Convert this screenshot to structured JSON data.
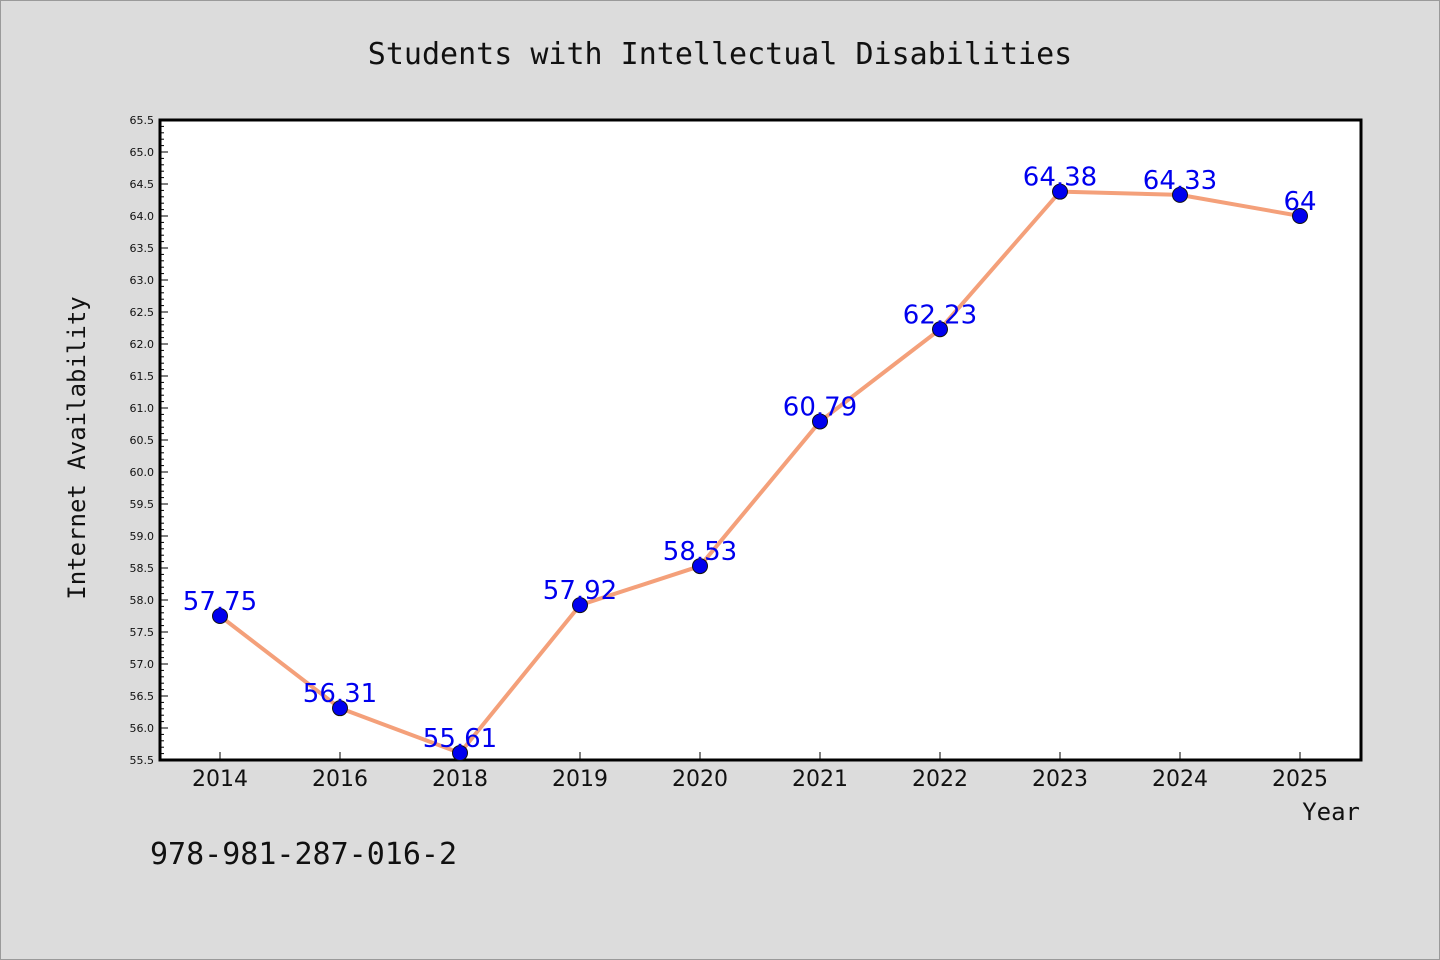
{
  "chart_data": {
    "type": "line",
    "title": "Students with Intellectual Disabilities",
    "xlabel": "Year",
    "ylabel": "Internet Availability",
    "categories": [
      "2014",
      "2016",
      "2018",
      "2019",
      "2020",
      "2021",
      "2022",
      "2023",
      "2024",
      "2025"
    ],
    "series": [
      {
        "values": [
          57.75,
          56.31,
          55.61,
          57.92,
          58.53,
          60.79,
          62.23,
          64.38,
          64.33,
          64
        ],
        "labels": [
          "57.75",
          "56.31",
          "55.61",
          "57.92",
          "58.53",
          "60.79",
          "62.23",
          "64.38",
          "64.33",
          "64"
        ],
        "line_color": "#f4a07a",
        "marker_color": "#0000ee"
      }
    ],
    "ylim": [
      55.5,
      65.5
    ],
    "yticks": [
      "55.5",
      "56.0",
      "56.5",
      "57.0",
      "57.5",
      "58.0",
      "58.5",
      "59.0",
      "59.5",
      "60.0",
      "60.5",
      "61.0",
      "61.5",
      "62.0",
      "62.5",
      "63.0",
      "63.5",
      "64.0",
      "64.5",
      "65.0",
      "65.5"
    ],
    "grid": false,
    "legend": "none"
  },
  "footer": {
    "isbn": "978-981-287-016-2"
  },
  "colors": {
    "background": "#dcdcdc",
    "plot_background": "#ffffff",
    "label_color": "#0000ee"
  }
}
